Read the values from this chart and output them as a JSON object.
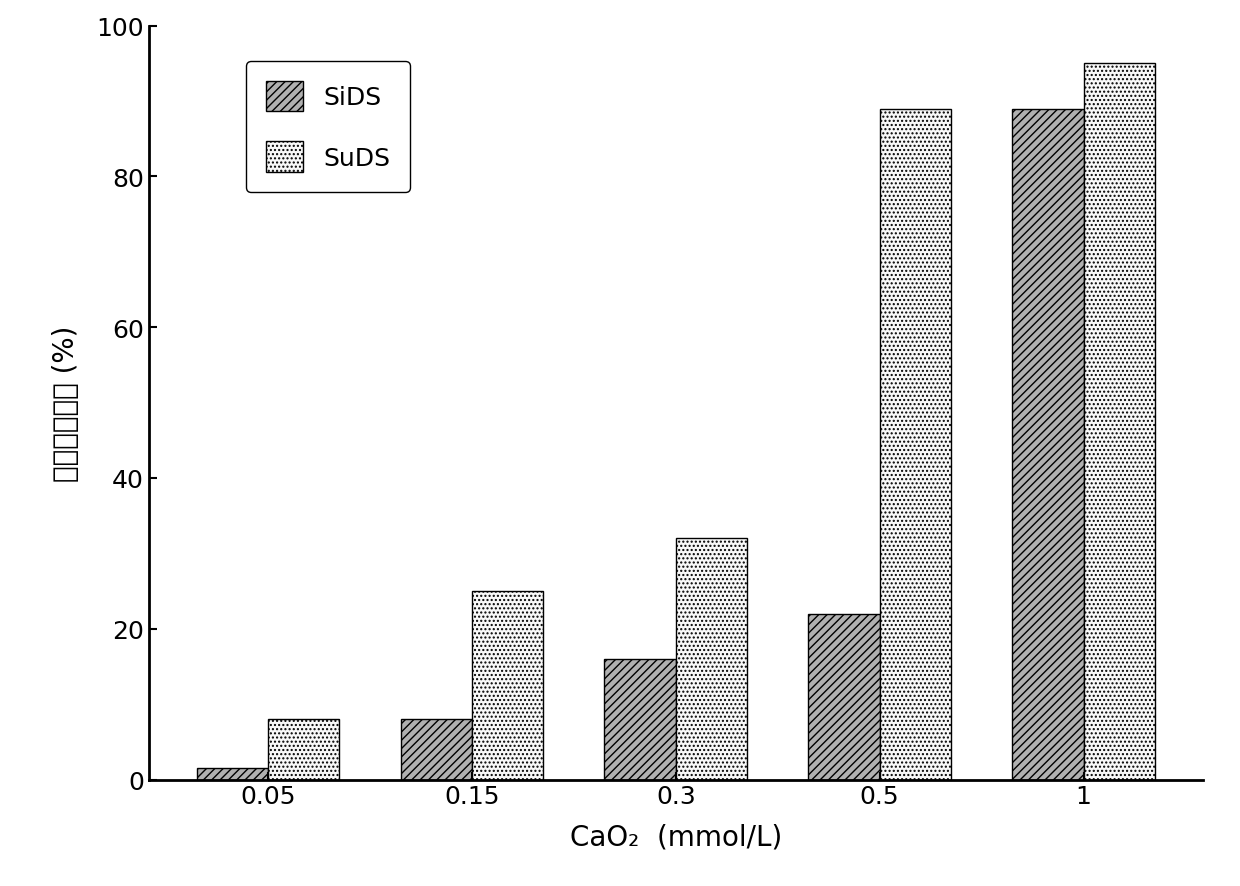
{
  "categories": [
    0.05,
    0.15,
    0.3,
    0.5,
    1.0
  ],
  "category_labels": [
    "0.05",
    "0.15",
    "0.3",
    "0.5",
    "1"
  ],
  "SiDS_values": [
    1.5,
    8.0,
    16.0,
    22.0,
    89.0
  ],
  "SuDS_values": [
    8.0,
    25.0,
    32.0,
    89.0,
    95.0
  ],
  "ylabel": "有机物去除率 (%)",
  "xlabel": "CaO₂  (mmol/L)",
  "ylim": [
    0,
    100
  ],
  "yticks": [
    0,
    20,
    40,
    60,
    80,
    100
  ],
  "legend_SiDS": "SiDS",
  "legend_SuDS": "SuDS",
  "bar_width": 0.35,
  "label_fontsize": 20,
  "tick_fontsize": 18,
  "legend_fontsize": 18,
  "SiDS_hatch": "////",
  "SiDS_facecolor": "#b0b0b0",
  "SuDS_hatch": "....",
  "SuDS_facecolor": "#f8f8f8",
  "edgecolor": "#000000"
}
